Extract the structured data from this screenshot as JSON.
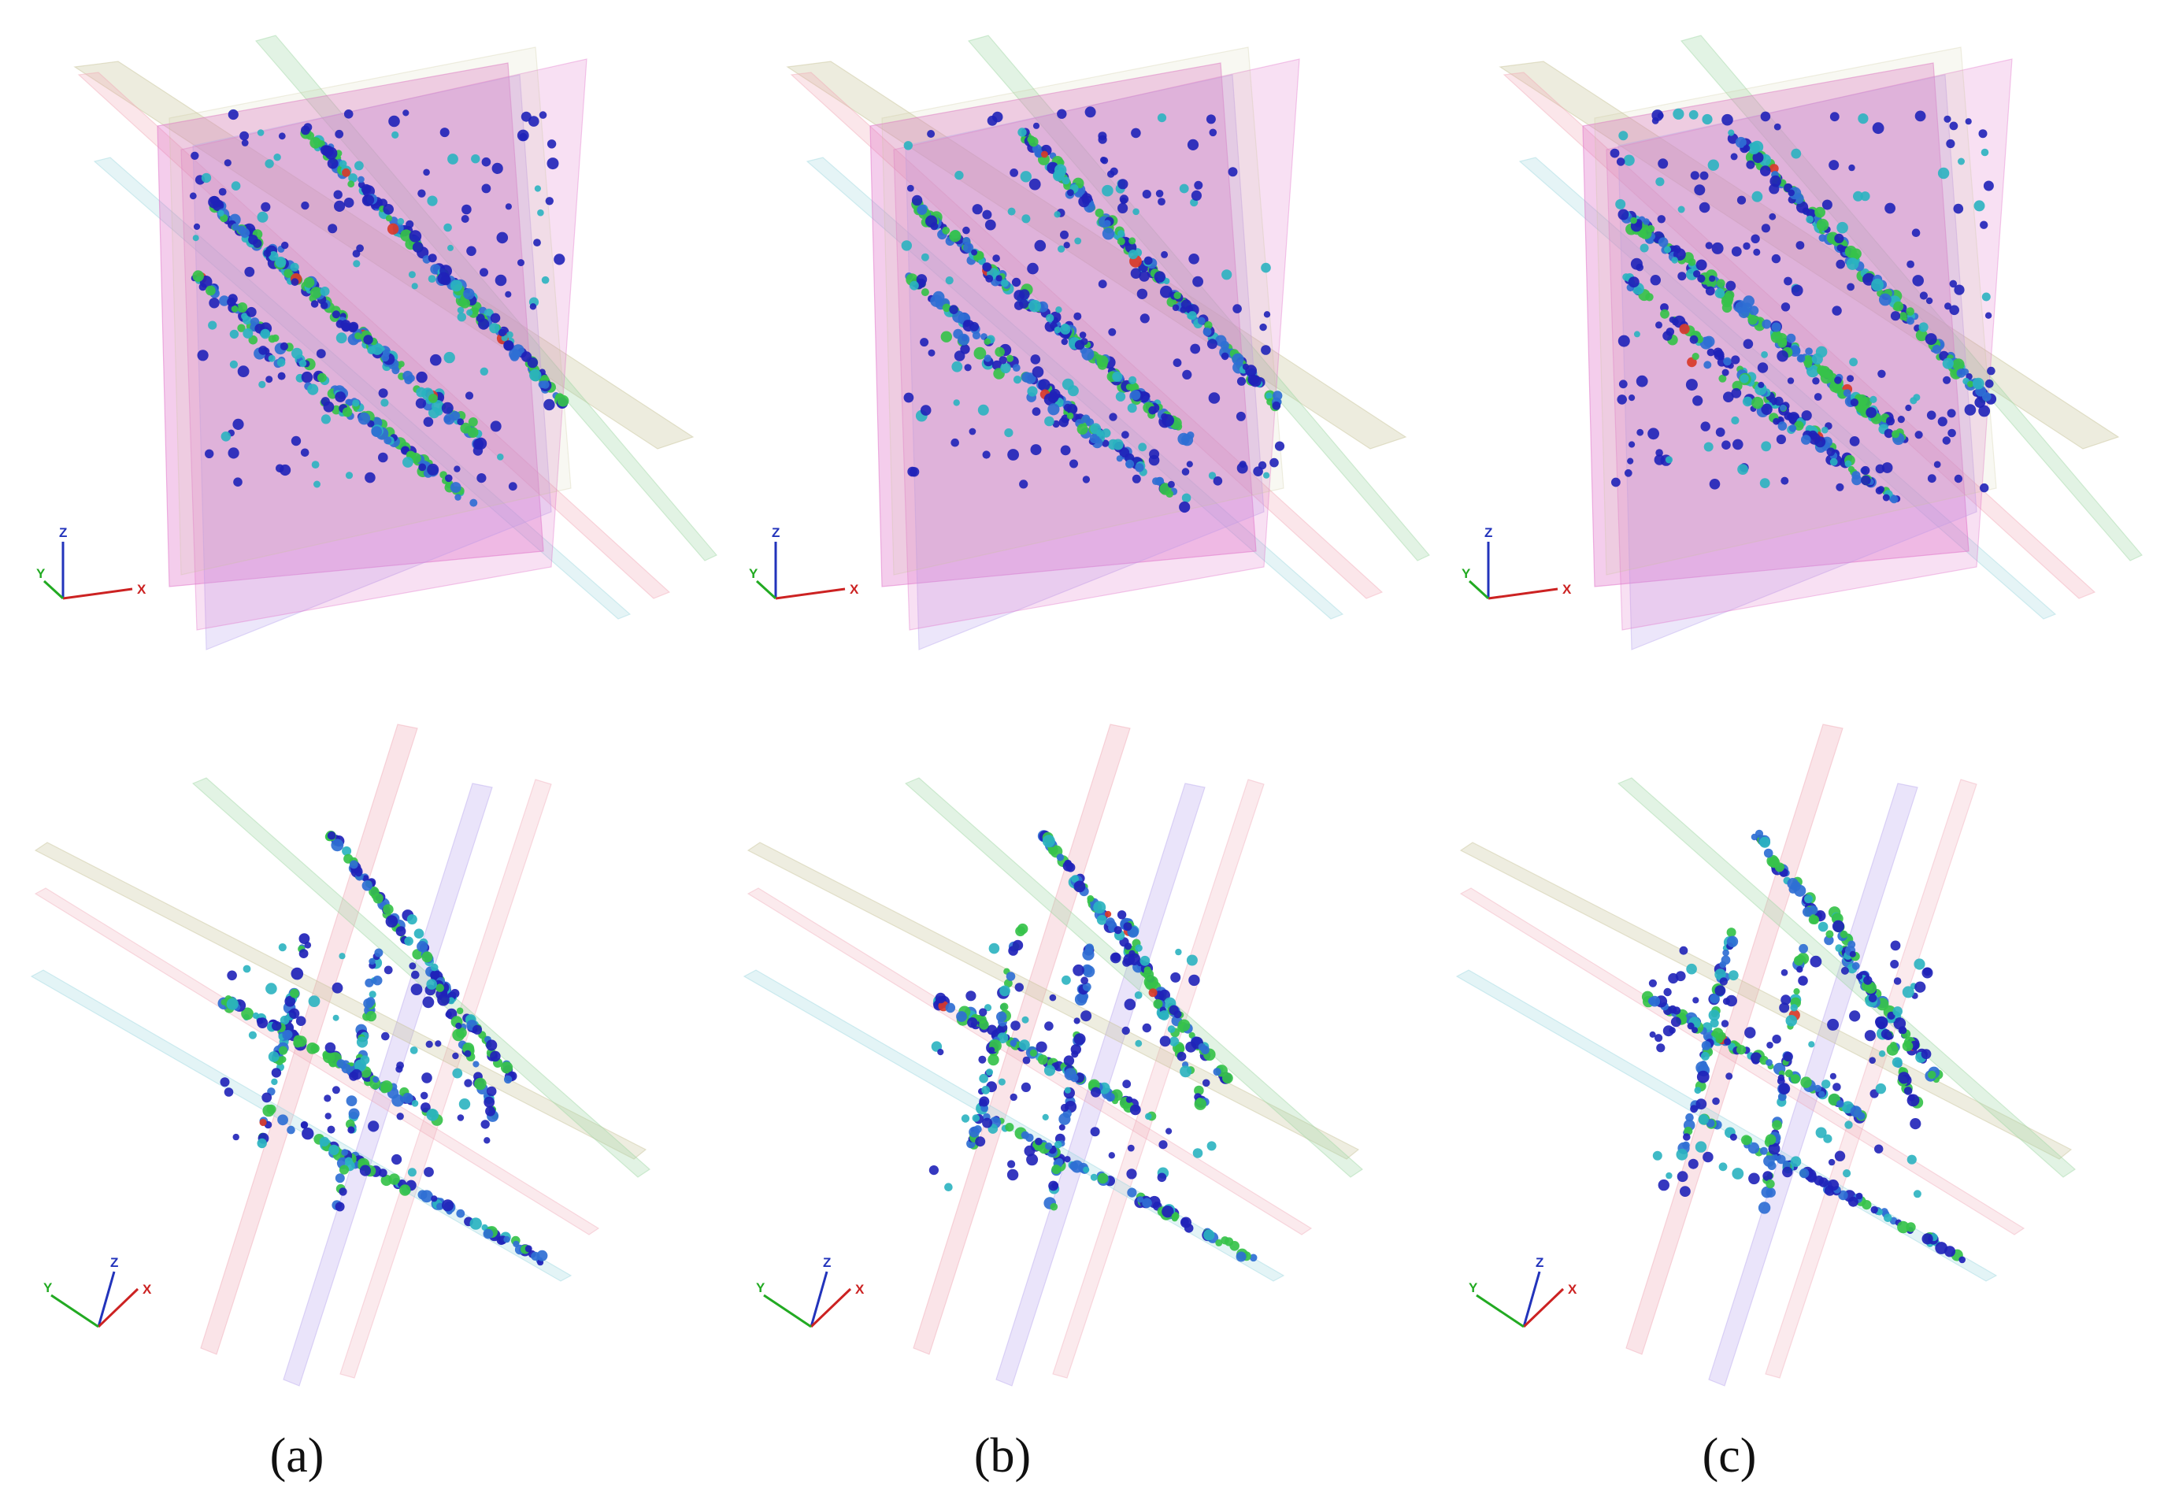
{
  "panels": [
    {
      "id": "a",
      "caption": "(a)",
      "views": [
        {
          "view": "front",
          "axes": {
            "x": "X",
            "y": "Y",
            "z": "Z"
          }
        },
        {
          "view": "oblique",
          "axes": {
            "x": "X",
            "y": "Y",
            "z": "Z"
          }
        }
      ]
    },
    {
      "id": "b",
      "caption": "(b)",
      "views": [
        {
          "view": "front",
          "axes": {
            "x": "X",
            "y": "Y",
            "z": "Z"
          }
        },
        {
          "view": "oblique",
          "axes": {
            "x": "X",
            "y": "Y",
            "z": "Z"
          }
        }
      ]
    },
    {
      "id": "c",
      "caption": "(c)",
      "views": [
        {
          "view": "front",
          "axes": {
            "x": "X",
            "y": "Y",
            "z": "Z"
          }
        },
        {
          "view": "oblique",
          "axes": {
            "x": "X",
            "y": "Y",
            "z": "Z"
          }
        }
      ]
    }
  ],
  "colors": {
    "plane_pink": "#e070c8",
    "plane_lavender": "#b9a6ee",
    "plane_olive": "#c8c498",
    "plane_green": "#9fd6a4",
    "plane_rose": "#f0a6b4",
    "plane_cyan": "#9ad6de",
    "event_dark_blue": "#1f22b8",
    "event_blue": "#2f6fd4",
    "event_teal": "#2ab3c0",
    "event_green": "#36c24a",
    "event_red": "#d83a2a",
    "axis_x": "#cc2222",
    "axis_y": "#22aa22",
    "axis_z": "#2233bb"
  }
}
